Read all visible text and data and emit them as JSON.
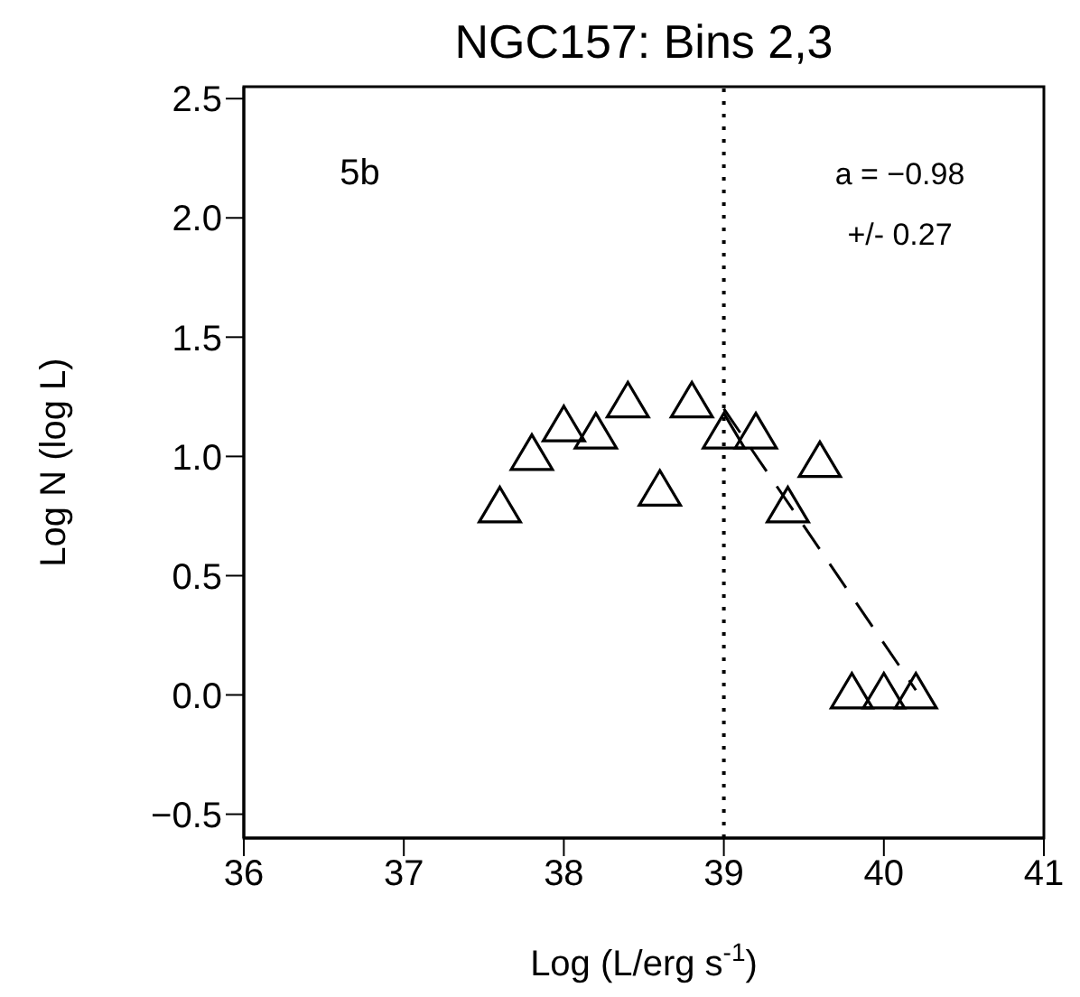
{
  "chart_data": {
    "type": "scatter",
    "title": "NGC157:  Bins 2,3",
    "xlabel": "Log (L/erg s$^{-1}$)",
    "ylabel": "Log N (log L)",
    "annotations": [
      "5b",
      "a =  −0.98",
      "+/-  0.27"
    ],
    "xlim": [
      36,
      41
    ],
    "xticks": [
      36,
      37,
      38,
      39,
      40,
      41
    ],
    "ylim": [
      -0.6,
      2.55
    ],
    "yticks": [
      {
        "value": -0.5,
        "label": "−0.5"
      },
      {
        "value": 0,
        "label": "0.0"
      },
      {
        "value": 0.5,
        "label": "0.5"
      },
      {
        "value": 1,
        "label": "1.0"
      },
      {
        "value": 1.5,
        "label": "1.5"
      },
      {
        "value": 2,
        "label": "2.0"
      },
      {
        "value": 2.5,
        "label": "2.5"
      }
    ],
    "series": [
      {
        "marker": "triangle",
        "color": "#000000",
        "x": [
          37.6,
          37.8,
          38.0,
          38.2,
          38.4,
          38.6,
          38.8,
          39.0,
          39.2,
          39.4,
          39.6,
          39.8,
          40.0,
          40.2
        ],
        "values": [
          0.78,
          1.0,
          1.12,
          1.09,
          1.22,
          0.85,
          1.22,
          1.09,
          1.09,
          0.78,
          0.97,
          0.0,
          0.0,
          0.0
        ]
      },
      {
        "type": "line",
        "marker": "none",
        "line_style": "dashed",
        "color": "#000000",
        "x": [
          39.0,
          40.2
        ],
        "values": [
          1.2,
          0.02
        ]
      }
    ],
    "ref_lines": [
      {
        "axis": "x",
        "value": 39,
        "line_style": "dotted",
        "color": "#000000"
      }
    ]
  }
}
